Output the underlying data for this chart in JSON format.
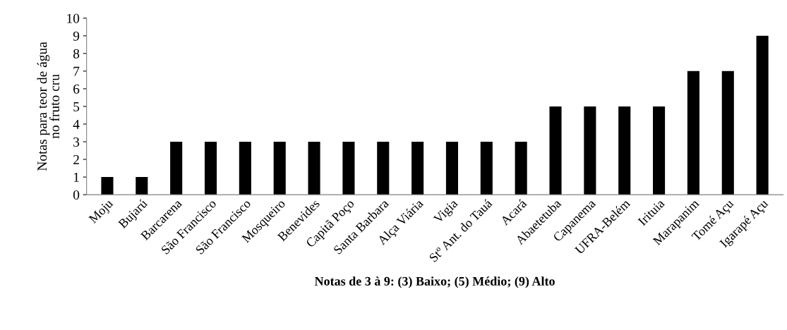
{
  "chart_data": {
    "type": "bar",
    "categories": [
      "Moju",
      "Bujarú",
      "Barcarena",
      "São Francisco",
      "São Francisco",
      "Mosqueiro",
      "Benevides",
      "Capitã Poço",
      "Santa Barbara",
      "Alça Viária",
      "Vigia",
      "Stº Ant. do Tauá",
      "Acará",
      "Abaetetuba",
      "Capanema",
      "UFRA-Belém",
      "Irituia",
      "Marapanim",
      "Tomé Açu",
      "Igarapé Açu"
    ],
    "values": [
      1,
      1,
      3,
      3,
      3,
      3,
      3,
      3,
      3,
      3,
      3,
      3,
      3,
      5,
      5,
      5,
      5,
      7,
      7,
      9
    ],
    "color": "#000000",
    "ylabel": "Notas para teor de água\nno fruto cru",
    "xlabel": "Notas de 3 à 9: (3) Baixo; (5) Médio; (9) Alto",
    "ylim": [
      0,
      10
    ],
    "yticks": [
      0,
      1,
      2,
      3,
      4,
      5,
      6,
      7,
      8,
      9,
      10
    ],
    "grid": false
  }
}
